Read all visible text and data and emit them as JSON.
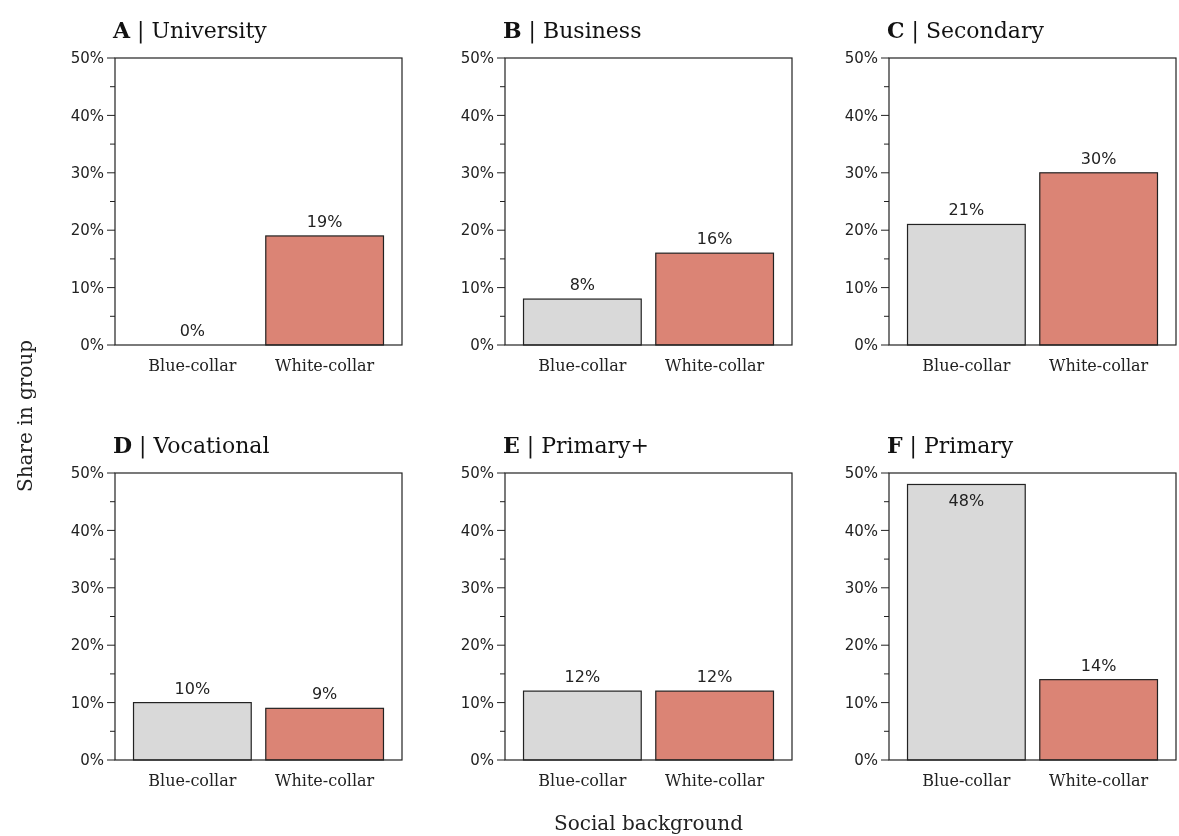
{
  "chart_data": [
    {
      "type": "bar",
      "title": "A | University",
      "ylabel": "Share in group",
      "categories": [
        "Blue-collar",
        "White-collar"
      ],
      "values": [
        0,
        19
      ],
      "colors": [
        "#d9d9d9",
        "#db8475"
      ],
      "value_labels": [
        "0%",
        "19%"
      ],
      "ylim": [
        0,
        50
      ],
      "yticks": [
        {
          "value": 0,
          "label": "0%"
        },
        {
          "value": 5,
          "label": null
        },
        {
          "value": 10,
          "label": "10%"
        },
        {
          "value": 15,
          "label": null
        },
        {
          "value": 20,
          "label": "20%"
        },
        {
          "value": 25,
          "label": null
        },
        {
          "value": 30,
          "label": "30%"
        },
        {
          "value": 35,
          "label": null
        },
        {
          "value": 40,
          "label": "40%"
        },
        {
          "value": 45,
          "label": null
        },
        {
          "value": 50,
          "label": "50%"
        }
      ]
    },
    {
      "type": "bar",
      "title": "B | Business",
      "categories": [
        "Blue-collar",
        "White-collar"
      ],
      "values": [
        8,
        16
      ],
      "colors": [
        "#d9d9d9",
        "#db8475"
      ],
      "value_labels": [
        "8%",
        "16%"
      ],
      "ylim": [
        0,
        50
      ],
      "yticks": [
        {
          "value": 0,
          "label": "0%"
        },
        {
          "value": 5,
          "label": null
        },
        {
          "value": 10,
          "label": "10%"
        },
        {
          "value": 15,
          "label": null
        },
        {
          "value": 20,
          "label": "20%"
        },
        {
          "value": 25,
          "label": null
        },
        {
          "value": 30,
          "label": "30%"
        },
        {
          "value": 35,
          "label": null
        },
        {
          "value": 40,
          "label": "40%"
        },
        {
          "value": 45,
          "label": null
        },
        {
          "value": 50,
          "label": "50%"
        }
      ]
    },
    {
      "type": "bar",
      "title": "C | Secondary",
      "categories": [
        "Blue-collar",
        "White-collar"
      ],
      "values": [
        21,
        30
      ],
      "colors": [
        "#d9d9d9",
        "#db8475"
      ],
      "value_labels": [
        "21%",
        "30%"
      ],
      "ylim": [
        0,
        50
      ],
      "yticks": [
        {
          "value": 0,
          "label": "0%"
        },
        {
          "value": 5,
          "label": null
        },
        {
          "value": 10,
          "label": "10%"
        },
        {
          "value": 15,
          "label": null
        },
        {
          "value": 20,
          "label": "20%"
        },
        {
          "value": 25,
          "label": null
        },
        {
          "value": 30,
          "label": "30%"
        },
        {
          "value": 35,
          "label": null
        },
        {
          "value": 40,
          "label": "40%"
        },
        {
          "value": 45,
          "label": null
        },
        {
          "value": 50,
          "label": "50%"
        }
      ]
    },
    {
      "type": "bar",
      "title": "D | Vocational",
      "categories": [
        "Blue-collar",
        "White-collar"
      ],
      "values": [
        10,
        9
      ],
      "colors": [
        "#d9d9d9",
        "#db8475"
      ],
      "value_labels": [
        "10%",
        "9%"
      ],
      "ylim": [
        0,
        50
      ],
      "yticks": [
        {
          "value": 0,
          "label": "0%"
        },
        {
          "value": 5,
          "label": null
        },
        {
          "value": 10,
          "label": "10%"
        },
        {
          "value": 15,
          "label": null
        },
        {
          "value": 20,
          "label": "20%"
        },
        {
          "value": 25,
          "label": null
        },
        {
          "value": 30,
          "label": "30%"
        },
        {
          "value": 35,
          "label": null
        },
        {
          "value": 40,
          "label": "40%"
        },
        {
          "value": 45,
          "label": null
        },
        {
          "value": 50,
          "label": "50%"
        }
      ]
    },
    {
      "type": "bar",
      "title": "E | Primary+",
      "xlabel": "Social background",
      "categories": [
        "Blue-collar",
        "White-collar"
      ],
      "values": [
        12,
        12
      ],
      "colors": [
        "#d9d9d9",
        "#db8475"
      ],
      "value_labels": [
        "12%",
        "12%"
      ],
      "ylim": [
        0,
        50
      ],
      "yticks": [
        {
          "value": 0,
          "label": "0%"
        },
        {
          "value": 5,
          "label": null
        },
        {
          "value": 10,
          "label": "10%"
        },
        {
          "value": 15,
          "label": null
        },
        {
          "value": 20,
          "label": "20%"
        },
        {
          "value": 25,
          "label": null
        },
        {
          "value": 30,
          "label": "30%"
        },
        {
          "value": 35,
          "label": null
        },
        {
          "value": 40,
          "label": "40%"
        },
        {
          "value": 45,
          "label": null
        },
        {
          "value": 50,
          "label": "50%"
        }
      ]
    },
    {
      "type": "bar",
      "title": "F | Primary",
      "categories": [
        "Blue-collar",
        "White-collar"
      ],
      "values": [
        48,
        14
      ],
      "colors": [
        "#d9d9d9",
        "#db8475"
      ],
      "value_labels": [
        "48%",
        "14%"
      ],
      "ylim": [
        0,
        50
      ],
      "yticks": [
        {
          "value": 0,
          "label": "0%"
        },
        {
          "value": 5,
          "label": null
        },
        {
          "value": 10,
          "label": "10%"
        },
        {
          "value": 15,
          "label": null
        },
        {
          "value": 20,
          "label": "20%"
        },
        {
          "value": 25,
          "label": null
        },
        {
          "value": 30,
          "label": "30%"
        },
        {
          "value": 35,
          "label": null
        },
        {
          "value": 40,
          "label": "40%"
        },
        {
          "value": 45,
          "label": null
        },
        {
          "value": 50,
          "label": "50%"
        }
      ]
    }
  ]
}
